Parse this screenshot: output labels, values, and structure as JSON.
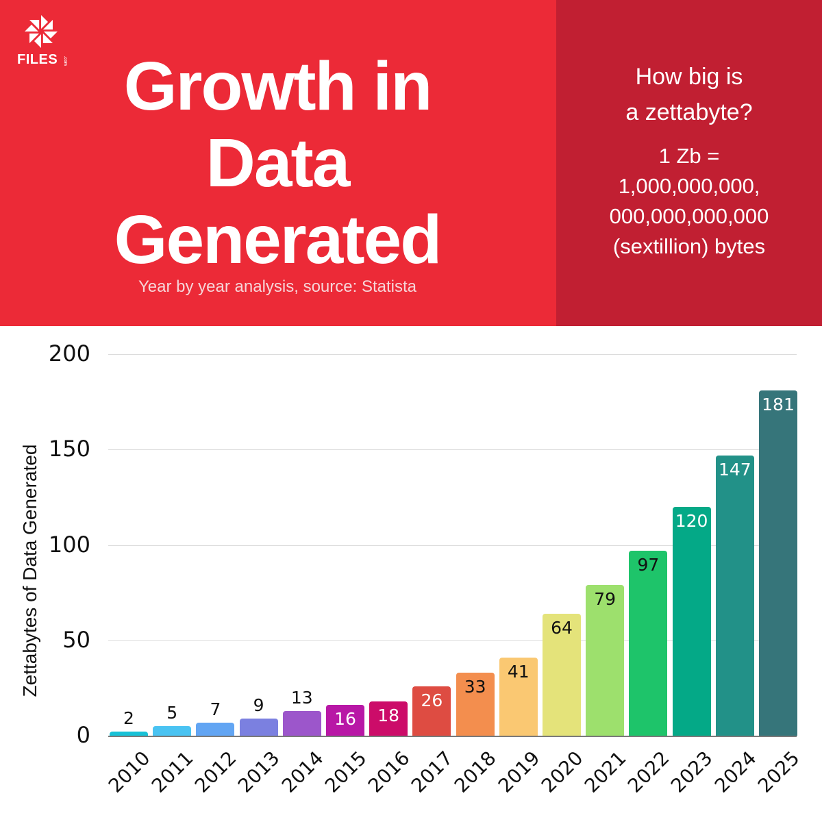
{
  "header": {
    "logo": {
      "text": "FILES",
      "suffix": ".com",
      "icon": "pinwheel-icon"
    },
    "title_lines": [
      "Growth in",
      "Data",
      "Generated"
    ],
    "subtitle": "Year by year analysis, source: Statista",
    "colors": {
      "primary_red": "#ec2a37",
      "dark_red": "#c11f32"
    }
  },
  "sidebar": {
    "question_lines": [
      "How big is",
      "a zettabyte?"
    ],
    "definition_lines": [
      "1 Zb =",
      "1,000,000,000,",
      "000,000,000,000",
      "(sextillion) bytes"
    ]
  },
  "chart_data": {
    "type": "bar",
    "title": "Growth in Data Generated",
    "subtitle": "Year by year analysis, source: Statista",
    "xlabel": "",
    "ylabel": "Zettabytes of Data Generated",
    "ylim": [
      0,
      200
    ],
    "yticks": [
      0,
      50,
      100,
      150,
      200
    ],
    "grid": true,
    "legend": "none",
    "categories": [
      "2010",
      "2011",
      "2012",
      "2013",
      "2014",
      "2015",
      "2016",
      "2017",
      "2018",
      "2019",
      "2020",
      "2021",
      "2022",
      "2023",
      "2024",
      "2025"
    ],
    "values": [
      2,
      5,
      7,
      9,
      13,
      16,
      18,
      26,
      33,
      41,
      64,
      79,
      97,
      120,
      147,
      181
    ],
    "bar_colors": [
      "#17c1d6",
      "#4ac3f2",
      "#62a5f3",
      "#7b80e0",
      "#9c56cb",
      "#b817a6",
      "#cc0c69",
      "#de4c42",
      "#f38e4e",
      "#fac872",
      "#e4e37a",
      "#9de06d",
      "#1ec46a",
      "#04a987",
      "#229188",
      "#36757a"
    ],
    "label_colors": [
      "#111111",
      "#111111",
      "#111111",
      "#111111",
      "#111111",
      "#ffffff",
      "#ffffff",
      "#ffffff",
      "#111111",
      "#111111",
      "#111111",
      "#111111",
      "#111111",
      "#ffffff",
      "#ffffff",
      "#ffffff"
    ],
    "labels_inside": [
      false,
      false,
      false,
      false,
      false,
      true,
      true,
      true,
      true,
      true,
      true,
      true,
      true,
      true,
      true,
      true
    ]
  }
}
